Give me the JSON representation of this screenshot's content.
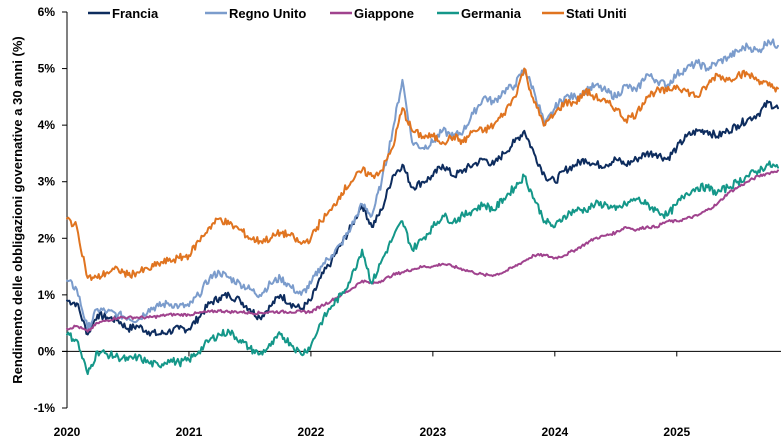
{
  "chart_data": {
    "type": "line",
    "title": "",
    "xlabel": "",
    "ylabel": "Rendimento delle obbligazioni governative a 30 anni (%)",
    "ylim": [
      -1,
      6
    ],
    "yticks": [
      -1,
      0,
      1,
      2,
      3,
      4,
      5,
      6
    ],
    "ytick_labels": [
      "-1%",
      "0%",
      "1%",
      "2%",
      "3%",
      "4%",
      "5%",
      "6%"
    ],
    "xticks": [
      2020,
      2021,
      2022,
      2023,
      2024,
      2025
    ],
    "xtick_labels": [
      "2020",
      "2021",
      "2022",
      "2023",
      "2024",
      "2025"
    ],
    "xlim": [
      2020.0,
      2025.83
    ],
    "grid": false,
    "legend_position": "top",
    "legend": [
      "Francia",
      "Regno Unito",
      "Giappone",
      "Germania",
      "Stati Uniti"
    ],
    "x": [
      2020.0,
      2020.08,
      2020.17,
      2020.25,
      2020.33,
      2020.42,
      2020.5,
      2020.58,
      2020.67,
      2020.75,
      2020.83,
      2020.92,
      2021.0,
      2021.08,
      2021.17,
      2021.25,
      2021.33,
      2021.42,
      2021.5,
      2021.58,
      2021.67,
      2021.75,
      2021.83,
      2021.92,
      2022.0,
      2022.08,
      2022.17,
      2022.25,
      2022.33,
      2022.42,
      2022.5,
      2022.58,
      2022.67,
      2022.75,
      2022.83,
      2022.92,
      2023.0,
      2023.08,
      2023.17,
      2023.25,
      2023.33,
      2023.42,
      2023.5,
      2023.58,
      2023.67,
      2023.75,
      2023.83,
      2023.92,
      2024.0,
      2024.08,
      2024.17,
      2024.25,
      2024.33,
      2024.42,
      2024.5,
      2024.58,
      2024.67,
      2024.75,
      2024.83,
      2024.92,
      2025.0,
      2025.08,
      2025.17,
      2025.25,
      2025.33,
      2025.42,
      2025.5,
      2025.58,
      2025.67,
      2025.75,
      2025.83
    ],
    "series": [
      {
        "name": "Francia",
        "color": "#0d2c5e",
        "values": [
          0.9,
          0.85,
          0.3,
          0.65,
          0.6,
          0.55,
          0.4,
          0.45,
          0.35,
          0.3,
          0.35,
          0.4,
          0.4,
          0.6,
          0.85,
          0.95,
          1.0,
          0.9,
          0.75,
          0.6,
          0.8,
          1.0,
          0.85,
          0.75,
          0.9,
          1.3,
          1.6,
          1.9,
          2.2,
          2.6,
          2.2,
          2.5,
          3.1,
          3.3,
          2.9,
          3.0,
          3.1,
          3.3,
          3.1,
          3.2,
          3.3,
          3.4,
          3.3,
          3.5,
          3.7,
          3.9,
          3.5,
          3.1,
          3.0,
          3.2,
          3.3,
          3.4,
          3.3,
          3.3,
          3.4,
          3.3,
          3.4,
          3.5,
          3.5,
          3.4,
          3.6,
          3.8,
          3.9,
          3.9,
          3.8,
          3.9,
          4.0,
          4.1,
          4.2,
          4.4,
          4.3
        ]
      },
      {
        "name": "Regno Unito",
        "color": "#7b9ccc",
        "values": [
          1.25,
          1.1,
          0.4,
          0.75,
          0.7,
          0.65,
          0.6,
          0.55,
          0.75,
          0.8,
          0.85,
          0.8,
          0.8,
          1.0,
          1.3,
          1.4,
          1.3,
          1.2,
          1.1,
          1.0,
          1.2,
          1.3,
          1.15,
          1.0,
          1.2,
          1.5,
          1.7,
          1.9,
          2.2,
          2.6,
          2.4,
          3.0,
          3.9,
          4.8,
          3.7,
          3.6,
          3.7,
          3.9,
          3.8,
          3.9,
          4.2,
          4.5,
          4.4,
          4.6,
          4.7,
          5.0,
          4.6,
          4.0,
          4.3,
          4.5,
          4.5,
          4.6,
          4.7,
          4.6,
          4.5,
          4.7,
          4.6,
          4.9,
          4.8,
          4.7,
          4.9,
          5.0,
          5.1,
          5.0,
          5.1,
          5.2,
          5.3,
          5.4,
          5.3,
          5.5,
          5.4
        ]
      },
      {
        "name": "Giappone",
        "color": "#a0438e",
        "values": [
          0.4,
          0.45,
          0.35,
          0.5,
          0.55,
          0.6,
          0.6,
          0.6,
          0.6,
          0.62,
          0.65,
          0.65,
          0.65,
          0.68,
          0.7,
          0.72,
          0.7,
          0.7,
          0.68,
          0.68,
          0.7,
          0.7,
          0.7,
          0.7,
          0.7,
          0.8,
          0.9,
          1.0,
          1.1,
          1.25,
          1.2,
          1.25,
          1.35,
          1.4,
          1.45,
          1.5,
          1.5,
          1.55,
          1.5,
          1.45,
          1.4,
          1.35,
          1.35,
          1.4,
          1.5,
          1.6,
          1.7,
          1.7,
          1.65,
          1.7,
          1.8,
          1.9,
          2.0,
          2.05,
          2.1,
          2.2,
          2.15,
          2.2,
          2.2,
          2.3,
          2.3,
          2.35,
          2.4,
          2.5,
          2.6,
          2.8,
          2.9,
          3.0,
          3.1,
          3.15,
          3.2
        ]
      },
      {
        "name": "Germania",
        "color": "#149789",
        "values": [
          0.3,
          0.2,
          -0.4,
          0.0,
          -0.05,
          -0.1,
          -0.15,
          -0.1,
          -0.2,
          -0.25,
          -0.15,
          -0.2,
          -0.15,
          0.0,
          0.2,
          0.3,
          0.35,
          0.2,
          0.05,
          -0.05,
          0.1,
          0.3,
          0.15,
          -0.05,
          0.1,
          0.5,
          0.8,
          1.0,
          1.3,
          1.8,
          1.2,
          1.6,
          2.0,
          2.3,
          1.8,
          2.0,
          2.2,
          2.4,
          2.3,
          2.4,
          2.5,
          2.6,
          2.5,
          2.7,
          2.9,
          3.1,
          2.7,
          2.3,
          2.2,
          2.4,
          2.5,
          2.5,
          2.6,
          2.6,
          2.5,
          2.6,
          2.7,
          2.6,
          2.5,
          2.4,
          2.6,
          2.8,
          2.9,
          2.9,
          2.8,
          2.9,
          3.0,
          3.1,
          3.2,
          3.3,
          3.25
        ]
      },
      {
        "name": "Stati Uniti",
        "color": "#e07420",
        "values": [
          2.35,
          2.2,
          1.3,
          1.3,
          1.4,
          1.45,
          1.35,
          1.4,
          1.45,
          1.55,
          1.6,
          1.65,
          1.7,
          1.95,
          2.2,
          2.35,
          2.25,
          2.15,
          2.0,
          1.95,
          2.0,
          2.1,
          2.05,
          1.9,
          2.0,
          2.3,
          2.5,
          2.8,
          3.0,
          3.2,
          3.1,
          3.2,
          3.6,
          4.3,
          3.9,
          3.8,
          3.8,
          3.7,
          3.8,
          3.7,
          3.9,
          3.9,
          4.0,
          4.2,
          4.5,
          5.0,
          4.4,
          4.0,
          4.2,
          4.4,
          4.4,
          4.6,
          4.5,
          4.4,
          4.3,
          4.1,
          4.2,
          4.5,
          4.6,
          4.6,
          4.7,
          4.6,
          4.5,
          4.7,
          4.9,
          4.8,
          4.9,
          4.9,
          4.8,
          4.7,
          4.65
        ]
      }
    ]
  }
}
